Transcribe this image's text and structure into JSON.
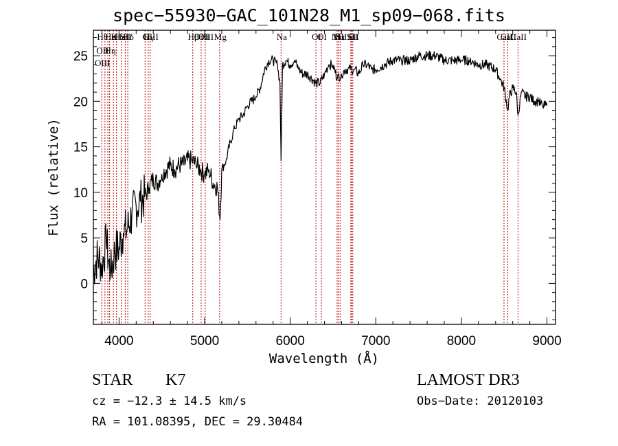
{
  "chart_data": {
    "type": "line",
    "title": "spec−55930−GAC_101N28_M1_sp09−068.fits",
    "xlabel": "Wavelength (Å)",
    "ylabel": "Flux (relative)",
    "xlim": [
      3700,
      9100
    ],
    "ylim": [
      -4.5,
      27.8
    ],
    "xticks": [
      4000,
      5000,
      6000,
      7000,
      8000,
      9000
    ],
    "yticks": [
      0,
      5,
      10,
      15,
      20,
      25
    ],
    "colors": {
      "spectrum": "#000000",
      "line_markers": "#c00000"
    },
    "series": [
      {
        "x": [
          3700,
          3750,
          3800,
          3850,
          3900,
          3950,
          4000,
          4050,
          4100,
          4150,
          4200,
          4250,
          4300,
          4350,
          4400,
          4450,
          4500,
          4550,
          4600,
          4650,
          4700,
          4750,
          4800,
          4850,
          4900,
          4950,
          5000,
          5050,
          5100,
          5150,
          5180,
          5200,
          5250,
          5300,
          5350,
          5400,
          5450,
          5500,
          5550,
          5600,
          5650,
          5700,
          5750,
          5800,
          5850,
          5880,
          5893,
          5910,
          5950,
          6000,
          6050,
          6100,
          6150,
          6200,
          6250,
          6300,
          6350,
          6400,
          6450,
          6500,
          6550,
          6600,
          6650,
          6700,
          6750,
          6800,
          6850,
          6900,
          6950,
          7000,
          7100,
          7200,
          7300,
          7400,
          7500,
          7600,
          7700,
          7800,
          7900,
          8000,
          8100,
          8200,
          8300,
          8400,
          8450,
          8500,
          8542,
          8560,
          8600,
          8640,
          8662,
          8700,
          8750,
          8800,
          8850,
          8900,
          8950,
          9000
        ],
        "values": [
          1.5,
          3.0,
          2.0,
          4.5,
          1.0,
          3.5,
          4.0,
          5.5,
          6.0,
          7.5,
          8.5,
          9.0,
          9.5,
          10.5,
          11.5,
          11.0,
          12.0,
          12.5,
          13.0,
          12.5,
          13.0,
          13.0,
          13.5,
          13.5,
          13.0,
          12.5,
          12.0,
          12.5,
          11.0,
          10.5,
          7.0,
          12.5,
          13.5,
          15.5,
          17.0,
          18.0,
          18.5,
          19.5,
          20.0,
          20.5,
          21.5,
          23.5,
          24.5,
          24.5,
          24.0,
          22.0,
          13.5,
          24.0,
          24.5,
          24.0,
          24.5,
          23.5,
          23.0,
          23.0,
          22.5,
          22.0,
          22.0,
          23.0,
          24.0,
          24.0,
          22.5,
          23.0,
          23.5,
          23.5,
          23.5,
          23.0,
          24.0,
          24.0,
          23.5,
          23.5,
          24.0,
          24.5,
          24.5,
          24.5,
          25.0,
          25.0,
          25.0,
          24.5,
          24.5,
          24.5,
          24.5,
          24.0,
          24.0,
          23.5,
          22.5,
          21.5,
          19.0,
          20.5,
          21.5,
          21.0,
          18.5,
          21.0,
          20.5,
          20.5,
          20.0,
          20.0,
          19.5,
          19.5
        ]
      }
    ],
    "line_markers": [
      {
        "x": 3798,
        "labels": [
          "Hθ",
          "OII",
          "OIII"
        ]
      },
      {
        "x": 3835,
        "labels": []
      },
      {
        "x": 3869,
        "labels": []
      },
      {
        "x": 3889,
        "labels": [
          "He",
          "Hη"
        ]
      },
      {
        "x": 3934,
        "labels": [
          "K"
        ]
      },
      {
        "x": 3970,
        "labels": [
          "H"
        ]
      },
      {
        "x": 4026,
        "labels": [
          "HeI"
        ]
      },
      {
        "x": 4072,
        "labels": [
          "SII"
        ]
      },
      {
        "x": 4102,
        "labels": [
          "Hδ"
        ]
      },
      {
        "x": 4304,
        "labels": [
          "G"
        ]
      },
      {
        "x": 4341,
        "labels": [
          "Hγ"
        ]
      },
      {
        "x": 4363,
        "labels": [
          "OIII"
        ]
      },
      {
        "x": 4861,
        "labels": [
          "Hβ"
        ]
      },
      {
        "x": 4959,
        "labels": [
          "OIII"
        ]
      },
      {
        "x": 5007,
        "labels": [
          "OIII"
        ]
      },
      {
        "x": 5175,
        "labels": [
          "Mg"
        ]
      },
      {
        "x": 5893,
        "labels": [
          "Na"
        ]
      },
      {
        "x": 6300,
        "labels": [
          "OI"
        ]
      },
      {
        "x": 6364,
        "labels": [
          "OI"
        ]
      },
      {
        "x": 6548,
        "labels": [
          "NII"
        ]
      },
      {
        "x": 6563,
        "labels": [
          "Hα"
        ]
      },
      {
        "x": 6583,
        "labels": [
          "NII"
        ]
      },
      {
        "x": 6708,
        "labels": [
          "Li"
        ]
      },
      {
        "x": 6716,
        "labels": [
          "SII"
        ]
      },
      {
        "x": 6731,
        "labels": [
          "SII"
        ]
      },
      {
        "x": 8498,
        "labels": [
          "CaII"
        ]
      },
      {
        "x": 8542,
        "labels": [
          "CaII"
        ]
      },
      {
        "x": 8662,
        "labels": [
          "CaII"
        ]
      }
    ]
  },
  "info": {
    "class": "STAR",
    "subclass": "K7",
    "survey": "LAMOST DR3",
    "cz": "cz = −12.3 ± 14.5 km/s",
    "obs_date": "Obs−Date: 20120103",
    "coords": "RA = 101.08395, DEC =  29.30484"
  }
}
